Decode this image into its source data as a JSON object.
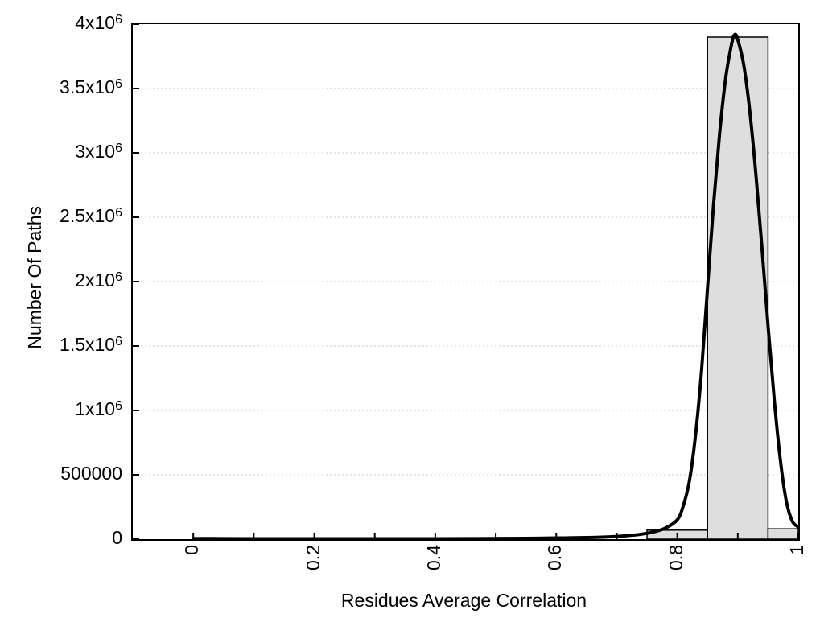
{
  "figure": {
    "x_axis_title": "Residues Average Correlation",
    "y_axis_title": "Number Of Paths"
  },
  "chart_data": {
    "type": "bar",
    "subtype": "histogram-with-smooth-curve",
    "title": "",
    "xlabel": "Residues Average Correlation",
    "ylabel": "Number Of Paths",
    "xlim": [
      -0.1,
      1.0
    ],
    "ylim": [
      0,
      4000000
    ],
    "grid": "horizontal-dotted-at-major-yticks",
    "legend": "none",
    "colors": {
      "bar_fill": "#dedede",
      "bar_border": "#000000",
      "curve": "#000000",
      "axis": "#000000",
      "gridline": "#c9c9c9",
      "background": "#ffffff"
    },
    "x_ticks": [
      {
        "value": 0.0,
        "label": "0"
      },
      {
        "value": 0.1,
        "label": ""
      },
      {
        "value": 0.2,
        "label": "0.2"
      },
      {
        "value": 0.3,
        "label": ""
      },
      {
        "value": 0.4,
        "label": "0.4"
      },
      {
        "value": 0.5,
        "label": ""
      },
      {
        "value": 0.6,
        "label": "0.6"
      },
      {
        "value": 0.7,
        "label": ""
      },
      {
        "value": 0.8,
        "label": "0.8"
      },
      {
        "value": 0.9,
        "label": ""
      },
      {
        "value": 1.0,
        "label": "1"
      }
    ],
    "y_ticks": [
      {
        "value": 0,
        "base": "0",
        "sup": ""
      },
      {
        "value": 500000,
        "base": "500000",
        "sup": ""
      },
      {
        "value": 1000000,
        "base": "1x10",
        "sup": "6"
      },
      {
        "value": 1500000,
        "base": "1.5x10",
        "sup": "6"
      },
      {
        "value": 2000000,
        "base": "2x10",
        "sup": "6"
      },
      {
        "value": 2500000,
        "base": "2.5x10",
        "sup": "6"
      },
      {
        "value": 3000000,
        "base": "3x10",
        "sup": "6"
      },
      {
        "value": 3500000,
        "base": "3.5x10",
        "sup": "6"
      },
      {
        "value": 4000000,
        "base": "4x10",
        "sup": "6"
      }
    ],
    "y_grid_values": [
      500000,
      1000000,
      1500000,
      2000000,
      2500000,
      3000000,
      3500000
    ],
    "bin_width": 0.1,
    "bars": [
      {
        "center": 0.8,
        "x0": 0.75,
        "x1": 0.85,
        "value": 70000
      },
      {
        "center": 0.9,
        "x0": 0.85,
        "x1": 0.95,
        "value": 3900000
      },
      {
        "center": 1.0,
        "x0": 0.95,
        "x1": 1.0,
        "value": 80000
      }
    ],
    "curve_points": [
      [
        0.0,
        5000
      ],
      [
        0.05,
        4000
      ],
      [
        0.1,
        3500
      ],
      [
        0.15,
        3200
      ],
      [
        0.2,
        3000
      ],
      [
        0.25,
        3000
      ],
      [
        0.3,
        3000
      ],
      [
        0.35,
        3200
      ],
      [
        0.4,
        3500
      ],
      [
        0.45,
        4000
      ],
      [
        0.5,
        5000
      ],
      [
        0.55,
        6500
      ],
      [
        0.6,
        9000
      ],
      [
        0.62,
        10000
      ],
      [
        0.64,
        11500
      ],
      [
        0.66,
        13500
      ],
      [
        0.68,
        16500
      ],
      [
        0.7,
        21000
      ],
      [
        0.72,
        28000
      ],
      [
        0.74,
        38000
      ],
      [
        0.76,
        55000
      ],
      [
        0.78,
        85000
      ],
      [
        0.8,
        150000
      ],
      [
        0.81,
        260000
      ],
      [
        0.82,
        450000
      ],
      [
        0.83,
        800000
      ],
      [
        0.84,
        1300000
      ],
      [
        0.85,
        1950000
      ],
      [
        0.86,
        2600000
      ],
      [
        0.87,
        3150000
      ],
      [
        0.88,
        3580000
      ],
      [
        0.89,
        3850000
      ],
      [
        0.895,
        3920000
      ],
      [
        0.9,
        3880000
      ],
      [
        0.91,
        3680000
      ],
      [
        0.92,
        3320000
      ],
      [
        0.93,
        2830000
      ],
      [
        0.94,
        2260000
      ],
      [
        0.95,
        1660000
      ],
      [
        0.96,
        1100000
      ],
      [
        0.97,
        630000
      ],
      [
        0.98,
        300000
      ],
      [
        0.99,
        140000
      ],
      [
        1.0,
        95000
      ]
    ]
  }
}
